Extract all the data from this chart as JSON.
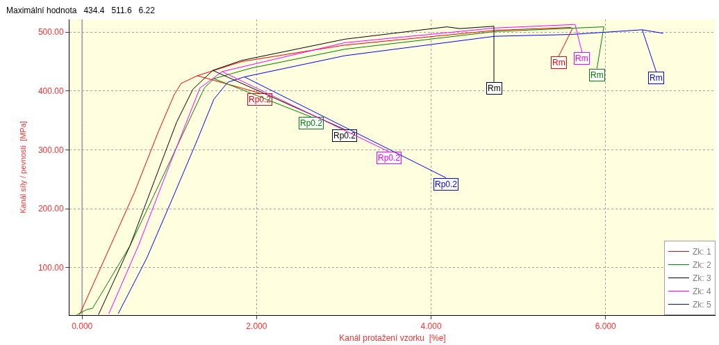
{
  "chart_data": {
    "type": "line",
    "xlabel": "Kanál protažení vzorku  [%e]",
    "ylabel": "Kanál síly / pevnosti  [MPa]",
    "xlim": [
      -0.145,
      7.26
    ],
    "ylim": [
      19.5,
      521.5
    ],
    "xticks": [
      {
        "value": 0,
        "label": "0.000"
      },
      {
        "value": 2,
        "label": "2.000"
      },
      {
        "value": 4,
        "label": "4.000"
      },
      {
        "value": 6,
        "label": "6.000"
      }
    ],
    "yticks": [
      {
        "value": 100,
        "label": "100.00"
      },
      {
        "value": 200,
        "label": "200.00"
      },
      {
        "value": 300,
        "label": "300.00"
      },
      {
        "value": 400,
        "label": "400.00"
      },
      {
        "value": 500,
        "label": "500.00"
      }
    ],
    "grid": true,
    "legend": "bottom right",
    "line_style": "solid",
    "marker": "none",
    "series": [
      {
        "name": "Zk: 1",
        "color": "#ff0000",
        "x": [
          -0.03,
          0.6,
          0.874,
          1.056,
          1.136,
          1.32,
          1.83,
          3.01,
          4.73,
          5.6,
          5.62
        ],
        "values": [
          20,
          228,
          331,
          394,
          413,
          426,
          450,
          478,
          503,
          508,
          506
        ]
      },
      {
        "name": "Zk: 2",
        "color": "#008000",
        "x": [
          -0.06,
          0.054,
          0.12,
          0.548,
          1.05,
          1.4,
          1.51,
          1.94,
          3.01,
          4.73,
          5.98
        ],
        "values": [
          20,
          29,
          31,
          137,
          294,
          405,
          421,
          439,
          471,
          501,
          509
        ]
      },
      {
        "name": "Zk: 3",
        "color": "#000000",
        "x": [
          0.187,
          0.548,
          0.83,
          1.083,
          1.27,
          1.497,
          1.83,
          3.01,
          4.18,
          4.33,
          4.72
        ],
        "values": [
          20,
          137,
          248,
          347,
          403,
          435,
          452,
          488,
          509,
          506,
          510
        ]
      },
      {
        "name": "Zk: 4",
        "color": "#ff00ff",
        "x": [
          0.307,
          0.65,
          0.928,
          1.19,
          1.35,
          1.604,
          3.01,
          4.73,
          5.65
        ],
        "values": [
          22,
          139,
          246,
          345,
          405,
          433,
          482,
          507,
          513
        ]
      },
      {
        "name": "Zk: 5",
        "color": "#0000ff",
        "x": [
          0.414,
          0.74,
          1.034,
          1.323,
          1.51,
          1.67,
          1.86,
          3.01,
          4.73,
          5.6,
          6.42,
          6.66
        ],
        "values": [
          22,
          116,
          217,
          318,
          386,
          415,
          424,
          460,
          493,
          496,
          504,
          498
        ]
      }
    ],
    "annotations": [
      {
        "text": "Rp0.2",
        "x": 1.32,
        "y": 426
      },
      {
        "text": "Rm",
        "x": 5.62,
        "y": 506
      },
      {
        "text": "Rp0.2",
        "x": 1.51,
        "y": 421
      },
      {
        "text": "Rm",
        "x": 5.98,
        "y": 509
      },
      {
        "text": "Rp0.2",
        "x": 1.497,
        "y": 435
      },
      {
        "text": "Rm",
        "x": 4.72,
        "y": 510
      },
      {
        "text": "Rp0.2",
        "x": 1.604,
        "y": 433
      },
      {
        "text": "Rm",
        "x": 5.65,
        "y": 513
      },
      {
        "text": "Rp0.2",
        "x": 1.86,
        "y": 424
      },
      {
        "text": "Rm",
        "x": 6.42,
        "y": 504
      },
      "Maximální hodnota   434.4   511.6   6.22"
    ]
  }
}
